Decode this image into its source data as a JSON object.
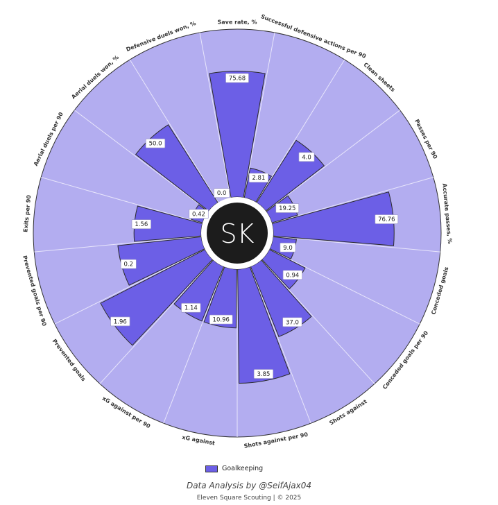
{
  "chart_data": {
    "type": "polar-bar",
    "center_label": "SK",
    "categories": [
      "Save rate, %",
      "Successful defensive actions per 90",
      "Clean sheets",
      "Passes per 90",
      "Accurate passes, %",
      "Conceded goals",
      "Conceded goals per 90",
      "Shots against",
      "Shots against per 90",
      "xG against",
      "xG against per 90",
      "Prevented goals",
      "Prevented goals per 90",
      "Exits per 90",
      "Aerial duels per 90",
      "Aerial duels won, %",
      "Defensive duels won, %"
    ],
    "series": [
      {
        "name": "Goalkeeping",
        "color": "#6c5fe6",
        "values": [
          "75.68",
          "2.81",
          "4.0",
          "19.25",
          "76.76",
          "9.0",
          "0.94",
          "37.0",
          "3.85",
          "10.96",
          "1.14",
          "1.96",
          "0.2",
          "1.56",
          "0.42",
          "50.0",
          "0.0"
        ]
      }
    ],
    "percentile_levels": [
      0.75,
      0.18,
      0.44,
      0.16,
      0.72,
      0.14,
      0.24,
      0.45,
      0.68,
      0.35,
      0.35,
      0.7,
      0.5,
      0.4,
      0.07,
      0.55,
      0.0
    ],
    "background_color": "#b3adf0",
    "legend_position": "bottom-center"
  },
  "legend": {
    "label": "Goalkeeping"
  },
  "credit": {
    "main": "Data Analysis by @SeifAjax04",
    "sub": "Eleven Square Scouting | © 2025"
  }
}
